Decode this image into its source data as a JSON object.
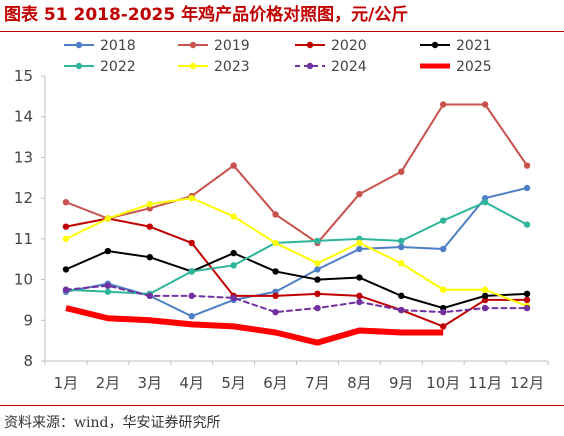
{
  "title": "图表 51 2018-2025 年鸡产品价格对照图，元/公斤",
  "source": "资料来源：wind，华安证券研究所",
  "chart_data": {
    "type": "line",
    "title": "图表 51 2018-2025 年鸡产品价格对照图，元/公斤",
    "xlabel": "",
    "ylabel": "",
    "categories": [
      "1月",
      "2月",
      "3月",
      "4月",
      "5月",
      "6月",
      "7月",
      "8月",
      "9月",
      "10月",
      "11月",
      "12月"
    ],
    "ylim": [
      8,
      15
    ],
    "yticks": [
      8,
      9,
      10,
      11,
      12,
      13,
      14,
      15
    ],
    "grid": false,
    "legend_position": "top",
    "series": [
      {
        "name": "2018",
        "color": "#4e7fc6",
        "dash": "solid",
        "width": 2,
        "values": [
          9.7,
          9.9,
          9.6,
          9.1,
          9.5,
          9.7,
          10.25,
          10.75,
          10.8,
          10.75,
          12.0,
          12.25
        ]
      },
      {
        "name": "2019",
        "color": "#c8524d",
        "dash": "solid",
        "width": 2,
        "values": [
          11.9,
          11.5,
          11.75,
          12.05,
          12.8,
          11.6,
          10.9,
          12.1,
          12.65,
          14.3,
          14.3,
          12.8
        ]
      },
      {
        "name": "2020",
        "color": "#c00000",
        "dash": "solid",
        "width": 2,
        "values": [
          11.3,
          11.5,
          11.3,
          10.9,
          9.6,
          9.6,
          9.65,
          9.6,
          9.25,
          8.85,
          9.5,
          9.5
        ]
      },
      {
        "name": "2021",
        "color": "#000000",
        "dash": "solid",
        "width": 2,
        "values": [
          10.25,
          10.7,
          10.55,
          10.2,
          10.65,
          10.2,
          10.0,
          10.05,
          9.6,
          9.3,
          9.6,
          9.65
        ]
      },
      {
        "name": "2022",
        "color": "#2fb59a",
        "dash": "solid",
        "width": 2,
        "values": [
          9.75,
          9.7,
          9.65,
          10.2,
          10.35,
          10.9,
          10.95,
          11.0,
          10.95,
          11.45,
          11.9,
          11.35
        ]
      },
      {
        "name": "2023",
        "color": "#ffff00",
        "dash": "solid",
        "width": 2,
        "values": [
          11.0,
          11.5,
          11.85,
          12.0,
          11.55,
          10.9,
          10.4,
          10.9,
          10.4,
          9.75,
          9.75,
          9.35
        ]
      },
      {
        "name": "2024",
        "color": "#7030a0",
        "dash": "dashed",
        "width": 2,
        "values": [
          9.75,
          9.85,
          9.6,
          9.6,
          9.55,
          9.2,
          9.3,
          9.45,
          9.25,
          9.2,
          9.3,
          9.3
        ]
      },
      {
        "name": "2025",
        "color": "#ff0000",
        "dash": "solid",
        "width": 6,
        "values": [
          9.3,
          9.05,
          9.0,
          8.9,
          8.85,
          8.7,
          8.45,
          8.75,
          8.7,
          8.7,
          null,
          null
        ]
      }
    ]
  }
}
